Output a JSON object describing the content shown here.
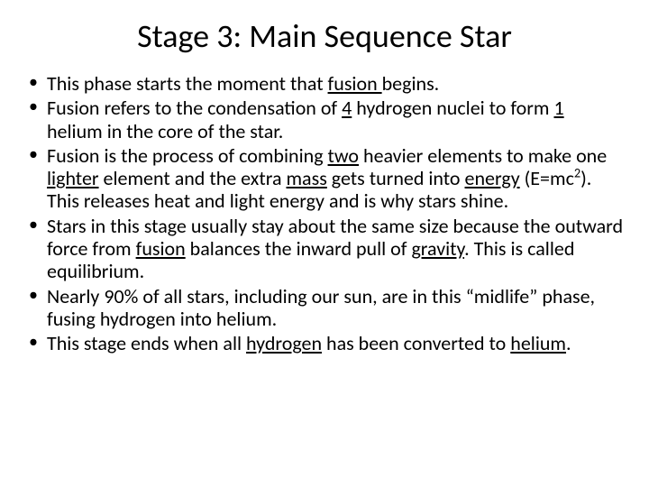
{
  "slide": {
    "title": "Stage 3: Main Sequence Star",
    "title_fontsize": 36,
    "body_fontsize": 22,
    "background_color": "#ffffff",
    "text_color": "#000000",
    "font_family": "Calibri",
    "bullets": [
      {
        "parts": [
          {
            "t": "This phase starts the moment that "
          },
          {
            "t": "fusion ",
            "u": true
          },
          {
            "t": "begins."
          }
        ]
      },
      {
        "parts": [
          {
            "t": "Fusion refers to the condensation of "
          },
          {
            "t": "4",
            "u": true
          },
          {
            "t": " hydrogen nuclei to form "
          },
          {
            "t": "1",
            "u": true
          },
          {
            "t": " helium in the core of the star."
          }
        ]
      },
      {
        "parts": [
          {
            "t": "Fusion is the process of combining "
          },
          {
            "t": "two",
            "u": true
          },
          {
            "t": " heavier elements to make one "
          },
          {
            "t": "lighter",
            "u": true
          },
          {
            "t": " element and the extra "
          },
          {
            "t": "mass",
            "u": true
          },
          {
            "t": " gets turned into "
          },
          {
            "t": "energy",
            "u": true
          },
          {
            "t": " (E=mc"
          },
          {
            "t": "2",
            "sup": true
          },
          {
            "t": ").  This releases heat and light energy and is why stars shine."
          }
        ]
      },
      {
        "parts": [
          {
            "t": "Stars in this stage usually stay about the same size because the outward force from "
          },
          {
            "t": "fusion",
            "u": true
          },
          {
            "t": " balances the inward pull of "
          },
          {
            "t": "gravity",
            "u": true
          },
          {
            "t": ".  This is called equilibrium."
          }
        ]
      },
      {
        "parts": [
          {
            "t": "Nearly 90% of all stars, including our sun, are in this “midlife” phase, fusing hydrogen into helium."
          }
        ]
      },
      {
        "parts": [
          {
            "t": "This stage ends when all "
          },
          {
            "t": "hydrogen",
            "u": true
          },
          {
            "t": " has been converted to "
          },
          {
            "t": "helium",
            "u": true
          },
          {
            "t": "."
          }
        ]
      }
    ]
  }
}
